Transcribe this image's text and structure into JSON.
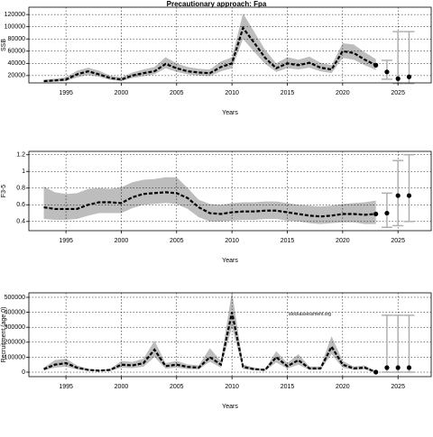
{
  "chart_data": [
    {
      "type": "line",
      "title": "Precautionary approach: Fpa",
      "xlabel": "Years",
      "ylabel": "SSB",
      "x": [
        1993,
        1994,
        1995,
        1996,
        1997,
        1998,
        1999,
        2000,
        2001,
        2002,
        2003,
        2004,
        2005,
        2006,
        2007,
        2008,
        2009,
        2010,
        2011,
        2012,
        2013,
        2014,
        2015,
        2016,
        2017,
        2018,
        2019,
        2020,
        2021,
        2022,
        2023
      ],
      "values": [
        11000,
        12000,
        13500,
        22000,
        27000,
        22000,
        16000,
        13500,
        20000,
        24000,
        27000,
        39000,
        32000,
        27000,
        25000,
        24000,
        34000,
        40000,
        98000,
        74000,
        49000,
        32000,
        40000,
        37000,
        41000,
        33000,
        30000,
        60000,
        57000,
        46000,
        37000
      ],
      "lower": [
        9000,
        10000,
        11000,
        17000,
        21000,
        18000,
        13000,
        11000,
        16000,
        19000,
        22000,
        32000,
        26000,
        22000,
        20000,
        19000,
        27000,
        32000,
        80000,
        59000,
        39000,
        26000,
        32000,
        30000,
        33000,
        27000,
        24000,
        49000,
        46000,
        37000,
        29000
      ],
      "upper": [
        13000,
        15000,
        17000,
        28000,
        33000,
        28000,
        20000,
        17000,
        25000,
        30000,
        34000,
        50000,
        40000,
        34000,
        31000,
        30000,
        43000,
        50000,
        122000,
        92000,
        62000,
        40000,
        50000,
        46000,
        51000,
        41000,
        37000,
        73000,
        71000,
        58000,
        47000
      ],
      "proj_x": [
        2024,
        2025,
        2026
      ],
      "proj_values": [
        26000,
        15000,
        18000
      ],
      "proj_lower": [
        14000,
        7000,
        7000
      ],
      "proj_upper": [
        45000,
        92000,
        92000
      ],
      "xlim": [
        1991.65,
        2028.0
      ],
      "ylim": [
        8000,
        132000
      ],
      "xticks": [
        1995,
        2000,
        2005,
        2010,
        2015,
        2020,
        2025
      ],
      "yticks": [
        20000,
        40000,
        60000,
        80000,
        100000,
        120000
      ],
      "grid": true,
      "band_color": "#bdbdbd",
      "line_color": "#000000",
      "bar_color": "#b0b0b0"
    },
    {
      "type": "line",
      "xlabel": "Years",
      "ylabel": "F3-5",
      "x": [
        1993,
        1994,
        1995,
        1996,
        1997,
        1998,
        1999,
        2000,
        2001,
        2002,
        2003,
        2004,
        2005,
        2006,
        2007,
        2008,
        2009,
        2010,
        2011,
        2012,
        2013,
        2014,
        2015,
        2016,
        2017,
        2018,
        2019,
        2020,
        2021,
        2022,
        2023
      ],
      "values": [
        0.57,
        0.55,
        0.55,
        0.55,
        0.6,
        0.63,
        0.63,
        0.62,
        0.69,
        0.73,
        0.74,
        0.75,
        0.74,
        0.68,
        0.57,
        0.5,
        0.49,
        0.51,
        0.52,
        0.52,
        0.53,
        0.53,
        0.51,
        0.49,
        0.47,
        0.46,
        0.47,
        0.49,
        0.49,
        0.48,
        0.49
      ],
      "lower": [
        0.43,
        0.42,
        0.42,
        0.43,
        0.47,
        0.5,
        0.5,
        0.5,
        0.56,
        0.6,
        0.61,
        0.62,
        0.61,
        0.55,
        0.45,
        0.4,
        0.4,
        0.41,
        0.42,
        0.42,
        0.43,
        0.43,
        0.41,
        0.4,
        0.38,
        0.37,
        0.38,
        0.39,
        0.39,
        0.37,
        0.37
      ],
      "upper": [
        0.82,
        0.75,
        0.73,
        0.74,
        0.79,
        0.8,
        0.79,
        0.81,
        0.87,
        0.9,
        0.91,
        0.93,
        0.93,
        0.8,
        0.66,
        0.61,
        0.6,
        0.62,
        0.63,
        0.63,
        0.64,
        0.64,
        0.62,
        0.6,
        0.59,
        0.58,
        0.59,
        0.61,
        0.62,
        0.63,
        0.65
      ],
      "proj_x": [
        2024,
        2025,
        2026
      ],
      "proj_values": [
        0.5,
        0.71,
        0.71
      ],
      "proj_lower": [
        0.33,
        0.35,
        0.4
      ],
      "proj_upper": [
        0.74,
        1.13,
        1.2
      ],
      "xlim": [
        1991.65,
        2028.0
      ],
      "ylim": [
        0.29,
        1.24
      ],
      "xticks": [
        1995,
        2000,
        2005,
        2010,
        2015,
        2020,
        2025
      ],
      "yticks": [
        0.4,
        0.6,
        0.8,
        1.0,
        1.2
      ],
      "grid": true,
      "band_color": "#bdbdbd",
      "line_color": "#000000",
      "bar_color": "#b0b0b0"
    },
    {
      "type": "line",
      "xlabel": "Years",
      "ylabel": "Recruitment (age 0)",
      "annotation": "stockassessment.org",
      "x": [
        1993,
        1994,
        1995,
        1996,
        1997,
        1998,
        1999,
        2000,
        2001,
        2002,
        2003,
        2004,
        2005,
        2006,
        2007,
        2008,
        2009,
        2010,
        2011,
        2012,
        2013,
        2014,
        2015,
        2016,
        2017,
        2018,
        2019,
        2020,
        2021,
        2022,
        2023
      ],
      "values": [
        20000,
        50000,
        60000,
        30000,
        15000,
        10000,
        15000,
        50000,
        45000,
        60000,
        150000,
        40000,
        50000,
        35000,
        30000,
        100000,
        50000,
        400000,
        35000,
        20000,
        15000,
        100000,
        40000,
        80000,
        25000,
        25000,
        170000,
        50000,
        25000,
        30000,
        0
      ],
      "lower": [
        12000,
        30000,
        36000,
        18000,
        9000,
        6000,
        9000,
        30000,
        27000,
        36000,
        100000,
        24000,
        30000,
        21000,
        18000,
        70000,
        30000,
        300000,
        21000,
        12000,
        9000,
        65000,
        24000,
        50000,
        15000,
        15000,
        120000,
        30000,
        15000,
        18000,
        0
      ],
      "upper": [
        30000,
        80000,
        90000,
        45000,
        22000,
        15000,
        22000,
        75000,
        68000,
        90000,
        210000,
        60000,
        75000,
        52000,
        45000,
        160000,
        75000,
        540000,
        52000,
        30000,
        22000,
        140000,
        60000,
        120000,
        38000,
        38000,
        240000,
        75000,
        38000,
        45000,
        5000
      ],
      "proj_x": [
        2024,
        2025,
        2026
      ],
      "proj_values": [
        30000,
        30000,
        30000
      ],
      "proj_lower": [
        0,
        0,
        0
      ],
      "proj_upper": [
        380000,
        380000,
        380000
      ],
      "xlim": [
        1991.65,
        2028.0
      ],
      "ylim": [
        -30000,
        530000
      ],
      "xticks": [
        1995,
        2000,
        2005,
        2010,
        2015,
        2020,
        2025
      ],
      "yticks": [
        0,
        100000,
        200000,
        300000,
        400000,
        500000
      ],
      "grid": true,
      "band_color": "#bdbdbd",
      "line_color": "#000000",
      "bar_color": "#b0b0b0"
    }
  ]
}
